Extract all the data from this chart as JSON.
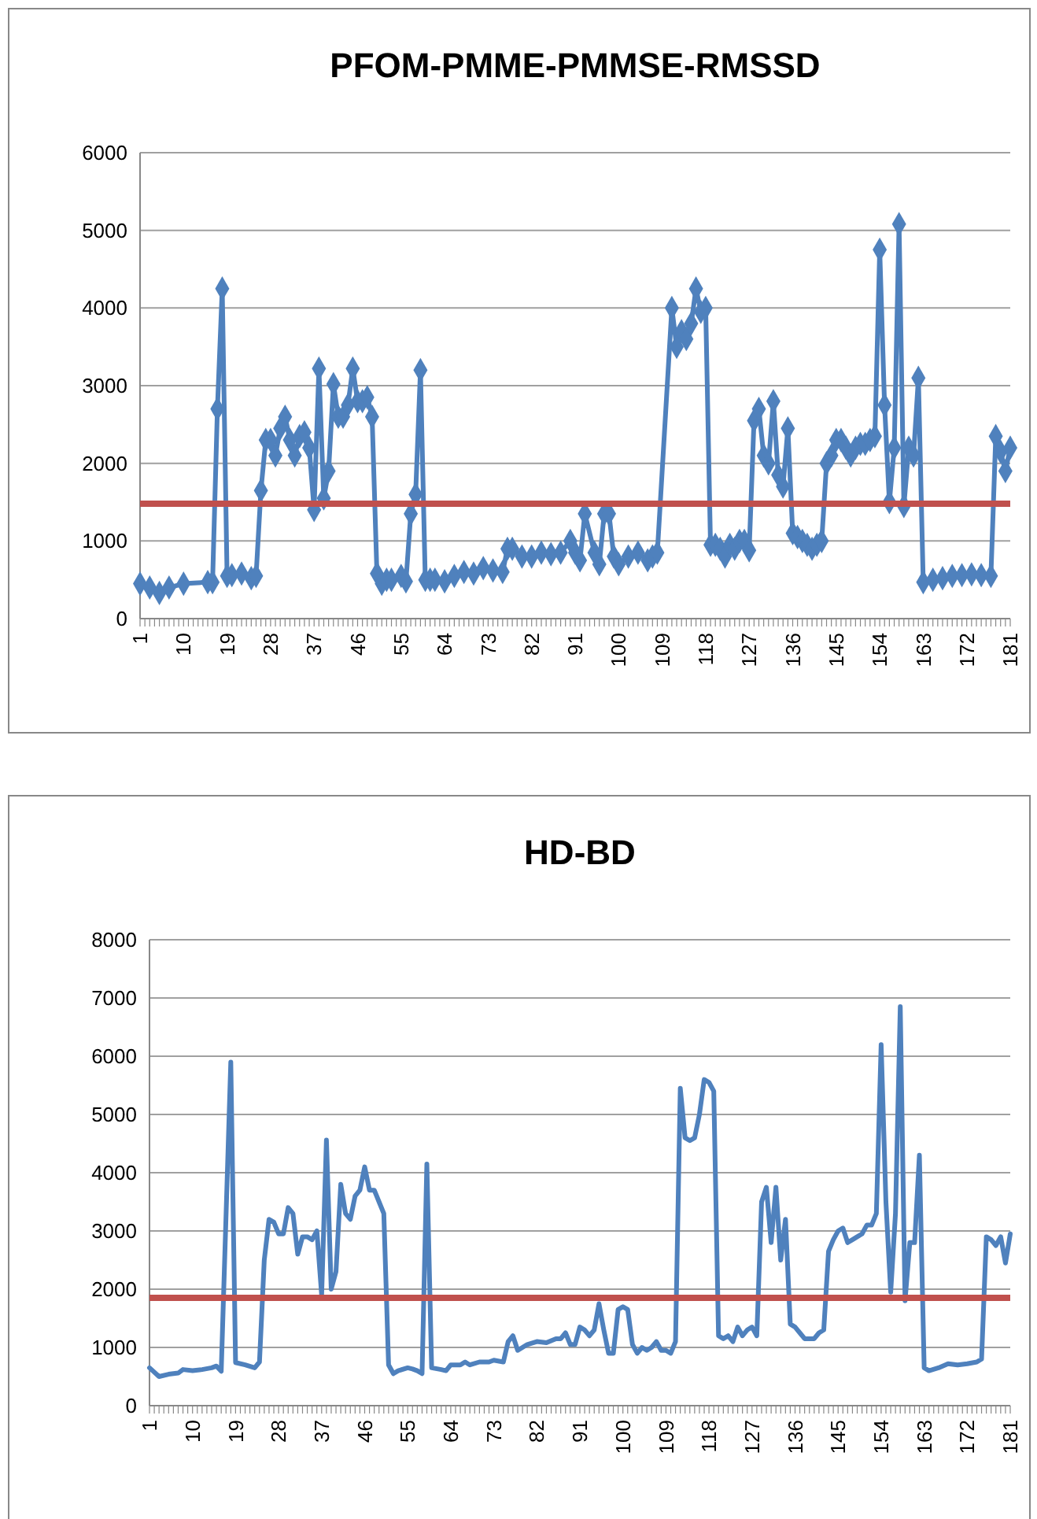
{
  "chart_data": [
    {
      "type": "line",
      "title": "PFOM-PMME-PMMSE-RMSSD",
      "marker": "diamond",
      "grid": "y",
      "xlim": [
        1,
        181
      ],
      "xticks": [
        1,
        10,
        19,
        28,
        37,
        46,
        55,
        64,
        73,
        82,
        91,
        100,
        109,
        118,
        127,
        136,
        145,
        154,
        163,
        172,
        181
      ],
      "ylim": [
        0,
        6000
      ],
      "yticks": [
        0,
        1000,
        2000,
        3000,
        4000,
        5000,
        6000
      ],
      "ref_lines": [
        {
          "axis": "y",
          "value": 1480,
          "color": "#c0504d"
        }
      ],
      "series": [
        {
          "color": "#4f81bd",
          "x": [
            1,
            3,
            5,
            7,
            10,
            15,
            16,
            17,
            18,
            19,
            20,
            22,
            24,
            25,
            26,
            27,
            28,
            29,
            30,
            31,
            32,
            33,
            34,
            35,
            36,
            37,
            38,
            39,
            40,
            41,
            42,
            43,
            44,
            45,
            46,
            47,
            48,
            49,
            50,
            51,
            52,
            53,
            55,
            56,
            57,
            58,
            59,
            60,
            61,
            62,
            64,
            66,
            68,
            70,
            72,
            74,
            76,
            77,
            78,
            80,
            82,
            84,
            86,
            88,
            90,
            91,
            92,
            93,
            95,
            96,
            97,
            98,
            99,
            100,
            102,
            104,
            106,
            107,
            108,
            111,
            112,
            113,
            114,
            115,
            116,
            117,
            118,
            119,
            120,
            121,
            122,
            123,
            124,
            125,
            126,
            127,
            128,
            129,
            130,
            131,
            132,
            133,
            134,
            135,
            136,
            137,
            138,
            139,
            140,
            141,
            142,
            143,
            144,
            145,
            146,
            147,
            148,
            149,
            150,
            151,
            152,
            153,
            154,
            155,
            156,
            157,
            158,
            159,
            160,
            161,
            162,
            163,
            165,
            167,
            169,
            171,
            173,
            175,
            177,
            178,
            179,
            180,
            181
          ],
          "values": [
            450,
            400,
            330,
            400,
            450,
            470,
            470,
            2700,
            4250,
            550,
            560,
            580,
            520,
            550,
            1650,
            2300,
            2300,
            2100,
            2450,
            2600,
            2300,
            2100,
            2350,
            2400,
            2200,
            1400,
            3220,
            1550,
            1900,
            3020,
            2600,
            2600,
            2750,
            3220,
            2800,
            2800,
            2850,
            2600,
            580,
            450,
            500,
            500,
            550,
            480,
            1350,
            1600,
            3200,
            500,
            500,
            500,
            480,
            550,
            600,
            580,
            650,
            620,
            600,
            900,
            900,
            800,
            800,
            850,
            830,
            850,
            1000,
            850,
            750,
            1350,
            850,
            700,
            1350,
            1350,
            800,
            700,
            800,
            850,
            750,
            800,
            850,
            4000,
            3500,
            3700,
            3600,
            3800,
            4250,
            3950,
            4000,
            950,
            950,
            900,
            800,
            950,
            900,
            1000,
            1000,
            880,
            2550,
            2700,
            2100,
            2000,
            2800,
            1850,
            1700,
            2450,
            1100,
            1050,
            1000,
            950,
            900,
            950,
            1000,
            2000,
            2100,
            2300,
            2300,
            2200,
            2100,
            2200,
            2250,
            2250,
            2300,
            2350,
            4750,
            2750,
            1500,
            2200,
            5080,
            1450,
            2200,
            2100,
            3100,
            470,
            500,
            520,
            550,
            560,
            570,
            560,
            550,
            2350,
            2150,
            1900,
            2200
          ]
        }
      ]
    },
    {
      "type": "line",
      "title": "HD-BD",
      "marker": "none",
      "grid": "y",
      "xlim": [
        1,
        181
      ],
      "xticks": [
        1,
        10,
        19,
        28,
        37,
        46,
        55,
        64,
        73,
        82,
        91,
        100,
        109,
        118,
        127,
        136,
        145,
        154,
        163,
        172,
        181
      ],
      "ylim": [
        0,
        8000
      ],
      "yticks": [
        0,
        1000,
        2000,
        3000,
        4000,
        5000,
        6000,
        7000,
        8000
      ],
      "ref_lines": [
        {
          "axis": "y",
          "value": 1850,
          "color": "#c0504d"
        }
      ],
      "series": [
        {
          "color": "#4f81bd",
          "x": [
            1,
            3,
            5,
            7,
            8,
            10,
            12,
            14,
            15,
            16,
            18,
            19,
            21,
            23,
            24,
            25,
            26,
            27,
            28,
            29,
            30,
            31,
            32,
            33,
            34,
            35,
            36,
            37,
            38,
            39,
            40,
            41,
            42,
            43,
            44,
            45,
            46,
            47,
            48,
            49,
            50,
            51,
            52,
            53,
            55,
            56,
            57,
            58,
            59,
            60,
            62,
            63,
            64,
            66,
            67,
            68,
            70,
            72,
            73,
            75,
            76,
            77,
            78,
            80,
            82,
            84,
            86,
            87,
            88,
            89,
            90,
            91,
            92,
            93,
            94,
            95,
            96,
            97,
            98,
            99,
            100,
            101,
            102,
            103,
            104,
            105,
            106,
            107,
            108,
            109,
            110,
            111,
            112,
            113,
            114,
            115,
            116,
            117,
            118,
            119,
            120,
            121,
            122,
            123,
            124,
            125,
            126,
            127,
            128,
            129,
            130,
            131,
            132,
            133,
            134,
            135,
            136,
            137,
            138,
            139,
            140,
            141,
            142,
            143,
            144,
            145,
            146,
            147,
            148,
            149,
            150,
            151,
            152,
            153,
            154,
            155,
            156,
            157,
            158,
            159,
            160,
            161,
            162,
            163,
            164,
            166,
            168,
            170,
            172,
            174,
            175,
            176,
            177,
            178,
            179,
            180,
            181
          ],
          "values": [
            650,
            500,
            540,
            560,
            620,
            600,
            620,
            650,
            680,
            590,
            5900,
            740,
            700,
            650,
            750,
            2500,
            3200,
            3150,
            2950,
            2950,
            3400,
            3300,
            2600,
            2900,
            2900,
            2850,
            3000,
            1900,
            4560,
            2000,
            2300,
            3800,
            3300,
            3200,
            3600,
            3700,
            4100,
            3700,
            3700,
            3500,
            3300,
            700,
            550,
            600,
            650,
            630,
            600,
            550,
            4150,
            650,
            620,
            600,
            700,
            700,
            750,
            700,
            750,
            750,
            780,
            750,
            1100,
            1200,
            950,
            1050,
            1100,
            1080,
            1150,
            1150,
            1250,
            1050,
            1050,
            1350,
            1300,
            1200,
            1300,
            1750,
            1300,
            900,
            900,
            1650,
            1700,
            1650,
            1050,
            900,
            1000,
            950,
            1000,
            1100,
            950,
            950,
            900,
            1100,
            5450,
            4600,
            4550,
            4600,
            5000,
            5600,
            5550,
            5400,
            1200,
            1150,
            1200,
            1100,
            1350,
            1200,
            1300,
            1350,
            1200,
            3500,
            3750,
            2800,
            3750,
            2500,
            3200,
            1400,
            1350,
            1250,
            1150,
            1150,
            1150,
            1250,
            1300,
            2650,
            2850,
            3000,
            3050,
            2800,
            2850,
            2900,
            2950,
            3100,
            3100,
            3300,
            6200,
            3500,
            1950,
            3300,
            6850,
            1800,
            2800,
            2800,
            4300,
            650,
            600,
            650,
            720,
            700,
            720,
            750,
            800,
            2900,
            2850,
            2750,
            2900,
            2450,
            2950
          ]
        }
      ]
    }
  ]
}
